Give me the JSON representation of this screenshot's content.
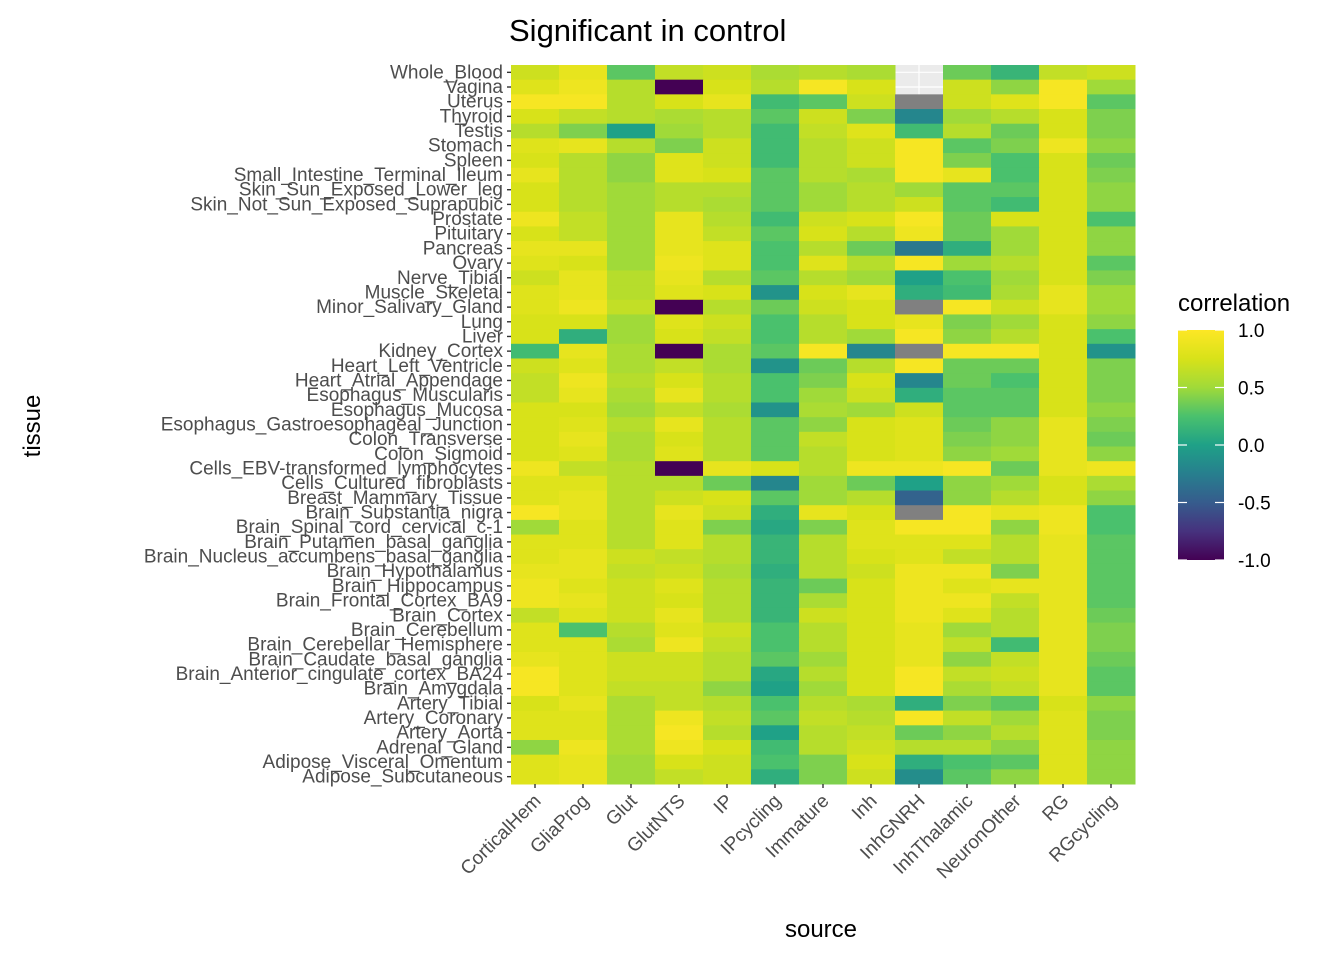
{
  "chart_data": {
    "type": "heatmap",
    "title": "Significant in control",
    "xlabel": "source",
    "ylabel": "tissue",
    "x_categories": [
      "CorticalHem",
      "GliaProg",
      "Glut",
      "GlutNTS",
      "IP",
      "IPcycling",
      "Immature",
      "Inh",
      "InhGNRH",
      "InhThalamic",
      "NeuronOther",
      "RG",
      "RGcycling"
    ],
    "y_categories": [
      "Whole_Blood",
      "Vagina",
      "Uterus",
      "Thyroid",
      "Testis",
      "Stomach",
      "Spleen",
      "Small_Intestine_Terminal_Ileum",
      "Skin_Sun_Exposed_Lower_leg",
      "Skin_Not_Sun_Exposed_Suprapubic",
      "Prostate",
      "Pituitary",
      "Pancreas",
      "Ovary",
      "Nerve_Tibial",
      "Muscle_Skeletal",
      "Minor_Salivary_Gland",
      "Lung",
      "Liver",
      "Kidney_Cortex",
      "Heart_Left_Ventricle",
      "Heart_Atrial_Appendage",
      "Esophagus_Muscularis",
      "Esophagus_Mucosa",
      "Esophagus_Gastroesophageal_Junction",
      "Colon_Transverse",
      "Colon_Sigmoid",
      "Cells_EBV-transformed_lymphocytes",
      "Cells_Cultured_fibroblasts",
      "Breast_Mammary_Tissue",
      "Brain_Substantia_nigra",
      "Brain_Spinal_cord_cervical_c-1",
      "Brain_Putamen_basal_ganglia",
      "Brain_Nucleus_accumbens_basal_ganglia",
      "Brain_Hypothalamus",
      "Brain_Hippocampus",
      "Brain_Frontal_Cortex_BA9",
      "Brain_Cortex",
      "Brain_Cerebellum",
      "Brain_Cerebellar_Hemisphere",
      "Brain_Caudate_basal_ganglia",
      "Brain_Anterior_cingulate_cortex_BA24",
      "Brain_Amygdala",
      "Artery_Tibial",
      "Artery_Coronary",
      "Artery_Aorta",
      "Adrenal_Gland",
      "Adipose_Visceral_Omentum",
      "Adipose_Subcutaneous"
    ],
    "values": [
      [
        0.7,
        0.85,
        0.3,
        0.65,
        0.7,
        0.55,
        0.6,
        0.55,
        null,
        0.35,
        0.15,
        0.65,
        0.7
      ],
      [
        0.8,
        0.9,
        0.6,
        -1.0,
        0.75,
        0.6,
        0.95,
        0.75,
        null,
        0.7,
        0.45,
        0.95,
        0.5
      ],
      [
        0.95,
        0.95,
        0.6,
        0.75,
        0.85,
        0.2,
        0.3,
        0.7,
        "NA",
        0.7,
        0.8,
        0.95,
        0.3
      ],
      [
        0.75,
        0.65,
        0.6,
        0.55,
        0.6,
        0.3,
        0.7,
        0.4,
        -0.2,
        0.5,
        0.6,
        0.75,
        0.4
      ],
      [
        0.6,
        0.4,
        0.0,
        0.5,
        0.6,
        0.2,
        0.65,
        0.8,
        0.2,
        0.6,
        0.35,
        0.75,
        0.4
      ],
      [
        0.8,
        0.85,
        0.6,
        0.4,
        0.7,
        0.2,
        0.6,
        0.7,
        0.95,
        0.3,
        0.4,
        0.9,
        0.45
      ],
      [
        0.75,
        0.6,
        0.45,
        0.8,
        0.7,
        0.2,
        0.6,
        0.7,
        0.95,
        0.4,
        0.25,
        0.75,
        0.35
      ],
      [
        0.85,
        0.6,
        0.45,
        0.8,
        0.75,
        0.3,
        0.6,
        0.55,
        0.95,
        0.85,
        0.25,
        0.75,
        0.4
      ],
      [
        0.75,
        0.6,
        0.5,
        0.6,
        0.6,
        0.3,
        0.5,
        0.6,
        0.5,
        0.3,
        0.3,
        0.75,
        0.45
      ],
      [
        0.75,
        0.6,
        0.5,
        0.6,
        0.55,
        0.3,
        0.5,
        0.6,
        0.7,
        0.3,
        0.2,
        0.75,
        0.45
      ],
      [
        0.9,
        0.65,
        0.5,
        0.85,
        0.6,
        0.2,
        0.7,
        0.75,
        0.95,
        0.35,
        0.75,
        0.75,
        0.25
      ],
      [
        0.75,
        0.65,
        0.5,
        0.85,
        0.65,
        0.3,
        0.75,
        0.6,
        0.9,
        0.35,
        0.5,
        0.75,
        0.45
      ],
      [
        0.85,
        0.85,
        0.5,
        0.85,
        0.8,
        0.25,
        0.6,
        0.35,
        -0.3,
        0.1,
        0.5,
        0.75,
        0.45
      ],
      [
        0.8,
        0.75,
        0.5,
        0.9,
        0.8,
        0.25,
        0.8,
        0.6,
        0.95,
        0.5,
        0.6,
        0.75,
        0.3
      ],
      [
        0.7,
        0.85,
        0.6,
        0.85,
        0.6,
        0.3,
        0.6,
        0.5,
        0.0,
        0.25,
        0.5,
        0.75,
        0.4
      ],
      [
        0.8,
        0.85,
        0.6,
        0.8,
        0.75,
        -0.1,
        0.75,
        0.85,
        0.1,
        0.2,
        0.55,
        0.85,
        0.5
      ],
      [
        0.8,
        0.9,
        0.65,
        -1.0,
        0.6,
        0.35,
        0.7,
        0.75,
        "NA",
        0.95,
        0.7,
        0.85,
        0.5
      ],
      [
        0.75,
        0.75,
        0.5,
        0.8,
        0.7,
        0.25,
        0.6,
        0.75,
        0.85,
        0.4,
        0.5,
        0.75,
        0.45
      ],
      [
        0.75,
        0.1,
        0.5,
        0.75,
        0.65,
        0.25,
        0.6,
        0.5,
        0.95,
        0.45,
        0.6,
        0.75,
        0.25
      ],
      [
        0.2,
        0.85,
        0.55,
        -1.0,
        0.55,
        0.3,
        0.95,
        -0.2,
        "NA",
        0.95,
        0.95,
        0.75,
        -0.1
      ],
      [
        0.7,
        0.8,
        0.55,
        0.65,
        0.55,
        -0.1,
        0.35,
        0.6,
        0.95,
        0.35,
        0.35,
        0.75,
        0.4
      ],
      [
        0.65,
        0.9,
        0.6,
        0.75,
        0.6,
        0.25,
        0.4,
        0.75,
        -0.2,
        0.35,
        0.25,
        0.75,
        0.4
      ],
      [
        0.65,
        0.85,
        0.55,
        0.85,
        0.6,
        0.25,
        0.5,
        0.7,
        0.1,
        0.3,
        0.3,
        0.75,
        0.4
      ],
      [
        0.75,
        0.75,
        0.5,
        0.65,
        0.55,
        -0.1,
        0.55,
        0.5,
        0.7,
        0.3,
        0.3,
        0.75,
        0.45
      ],
      [
        0.75,
        0.8,
        0.6,
        0.85,
        0.6,
        0.3,
        0.45,
        0.75,
        0.8,
        0.35,
        0.45,
        0.85,
        0.4
      ],
      [
        0.75,
        0.85,
        0.55,
        0.75,
        0.6,
        0.3,
        0.65,
        0.75,
        0.8,
        0.4,
        0.45,
        0.85,
        0.35
      ],
      [
        0.75,
        0.8,
        0.55,
        0.8,
        0.6,
        0.3,
        0.6,
        0.75,
        0.8,
        0.45,
        0.5,
        0.85,
        0.45
      ],
      [
        0.9,
        0.65,
        0.6,
        -1.0,
        0.85,
        0.75,
        0.6,
        0.9,
        0.9,
        0.95,
        0.35,
        0.85,
        0.9
      ],
      [
        0.8,
        0.8,
        0.6,
        0.6,
        0.35,
        -0.2,
        0.5,
        0.35,
        0.0,
        0.45,
        0.5,
        0.75,
        0.55
      ],
      [
        0.8,
        0.85,
        0.6,
        0.7,
        0.75,
        0.3,
        0.5,
        0.6,
        -0.45,
        0.45,
        0.6,
        0.75,
        0.45
      ],
      [
        0.95,
        0.85,
        0.6,
        0.85,
        0.7,
        0.1,
        0.85,
        0.75,
        "NA",
        0.95,
        0.85,
        0.9,
        0.25
      ],
      [
        0.5,
        0.8,
        0.6,
        0.8,
        0.4,
        0.05,
        0.4,
        0.8,
        0.95,
        0.95,
        0.45,
        0.9,
        0.25
      ],
      [
        0.8,
        0.8,
        0.6,
        0.8,
        0.6,
        0.15,
        0.6,
        0.8,
        0.8,
        0.8,
        0.6,
        0.85,
        0.3
      ],
      [
        0.8,
        0.85,
        0.7,
        0.65,
        0.6,
        0.15,
        0.6,
        0.75,
        0.8,
        0.65,
        0.6,
        0.85,
        0.3
      ],
      [
        0.85,
        0.85,
        0.65,
        0.7,
        0.55,
        0.1,
        0.6,
        0.7,
        0.9,
        0.9,
        0.4,
        0.85,
        0.3
      ],
      [
        0.9,
        0.8,
        0.7,
        0.8,
        0.6,
        0.15,
        0.35,
        0.75,
        0.9,
        0.8,
        0.85,
        0.85,
        0.3
      ],
      [
        0.9,
        0.85,
        0.7,
        0.75,
        0.6,
        0.15,
        0.55,
        0.75,
        0.9,
        0.9,
        0.65,
        0.85,
        0.3
      ],
      [
        0.65,
        0.8,
        0.7,
        0.85,
        0.6,
        0.15,
        0.7,
        0.75,
        0.9,
        0.8,
        0.6,
        0.85,
        0.35
      ],
      [
        0.8,
        0.25,
        0.6,
        0.8,
        0.7,
        0.25,
        0.6,
        0.75,
        0.85,
        0.5,
        0.6,
        0.85,
        0.4
      ],
      [
        0.8,
        0.8,
        0.55,
        0.9,
        0.65,
        0.25,
        0.6,
        0.75,
        0.85,
        0.65,
        0.2,
        0.85,
        0.4
      ],
      [
        0.85,
        0.8,
        0.7,
        0.7,
        0.6,
        0.3,
        0.5,
        0.75,
        0.85,
        0.45,
        0.65,
        0.85,
        0.35
      ],
      [
        0.95,
        0.8,
        0.7,
        0.7,
        0.6,
        0.05,
        0.6,
        0.75,
        0.95,
        0.65,
        0.7,
        0.85,
        0.3
      ],
      [
        0.95,
        0.8,
        0.65,
        0.65,
        0.45,
        0.0,
        0.5,
        0.75,
        0.95,
        0.55,
        0.65,
        0.85,
        0.3
      ],
      [
        0.75,
        0.85,
        0.55,
        0.65,
        0.6,
        0.25,
        0.6,
        0.55,
        0.1,
        0.4,
        0.3,
        0.75,
        0.45
      ],
      [
        0.8,
        0.8,
        0.55,
        0.9,
        0.65,
        0.3,
        0.65,
        0.6,
        0.95,
        0.65,
        0.5,
        0.8,
        0.4
      ],
      [
        0.8,
        0.8,
        0.55,
        0.95,
        0.6,
        0.0,
        0.6,
        0.65,
        0.35,
        0.45,
        0.6,
        0.8,
        0.4
      ],
      [
        0.45,
        0.9,
        0.55,
        0.9,
        0.75,
        0.2,
        0.6,
        0.7,
        0.6,
        0.6,
        0.45,
        0.8,
        0.45
      ],
      [
        0.8,
        0.85,
        0.5,
        0.75,
        0.7,
        0.25,
        0.4,
        0.75,
        0.1,
        0.25,
        0.3,
        0.8,
        0.45
      ],
      [
        0.8,
        0.85,
        0.5,
        0.65,
        0.7,
        0.1,
        0.4,
        0.7,
        -0.15,
        0.3,
        0.45,
        0.8,
        0.45
      ]
    ],
    "na_color": "#808080",
    "colorscale": "viridis",
    "legend": {
      "title": "correlation",
      "ticks": [
        "1.0",
        "0.5",
        "0.0",
        "-0.5",
        "-1.0"
      ],
      "tick_values": [
        1.0,
        0.5,
        0.0,
        -0.5,
        -1.0
      ],
      "range": [
        -1.0,
        1.0
      ],
      "placement": "right"
    }
  }
}
